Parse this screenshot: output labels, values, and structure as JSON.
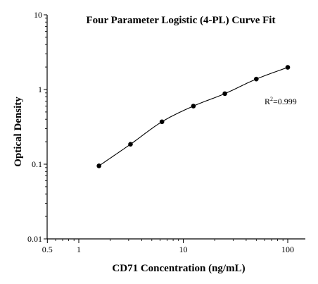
{
  "chart_data": {
    "type": "scatter",
    "title": "Four Parameter Logistic (4-PL) Curve Fit",
    "xlabel": "CD71 Concentration (ng/mL)",
    "ylabel": "Optical Density",
    "x_scale": "log",
    "y_scale": "log",
    "xlim": [
      0.5,
      130
    ],
    "ylim": [
      0.01,
      10
    ],
    "x_ticks": [
      0.5,
      1,
      10,
      100
    ],
    "x_tick_labels": [
      "0.5",
      "1",
      "10",
      "100"
    ],
    "y_ticks": [
      0.01,
      0.1,
      1,
      10
    ],
    "y_tick_labels": [
      "0.01",
      "0.1",
      "1",
      "10"
    ],
    "grid": false,
    "legend": "none",
    "annotation": {
      "base": "R",
      "superscript": "2",
      "value": "=0.999"
    },
    "series": [
      {
        "x": [
          1.56,
          3.125,
          6.25,
          12.5,
          25,
          50,
          100
        ],
        "y": [
          0.095,
          0.185,
          0.37,
          0.6,
          0.88,
          1.38,
          1.98
        ],
        "fit": "4-PL curve"
      }
    ],
    "colors": {
      "points": "#000000",
      "curve": "#000000",
      "axes": "#000000"
    }
  }
}
